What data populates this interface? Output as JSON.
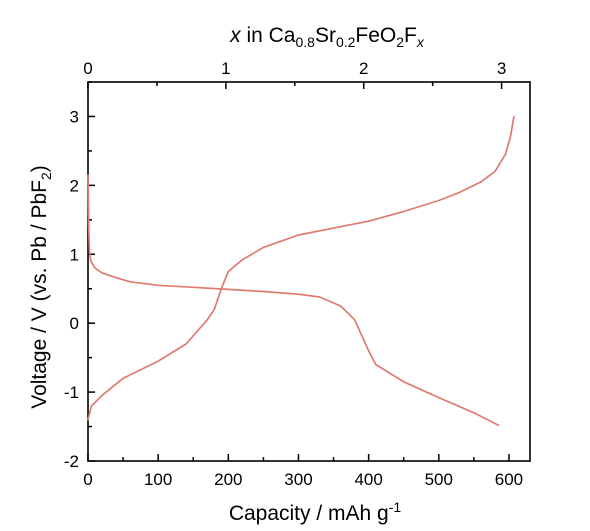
{
  "chart_data": {
    "type": "line",
    "xlabel": {
      "main": "Capacity / mAh g",
      "sup": "-1"
    },
    "ylabel": {
      "main": "Voltage / V (vs. Pb / PbF",
      "sub": "2",
      "tail": ")"
    },
    "top_xlabel": {
      "var": "x",
      "pre": " in Ca",
      "sub1": "0.8",
      "mid": "Sr",
      "sub2": "0.2",
      "post": "FeO",
      "sub3": "2",
      "f": "F",
      "sub4": "x"
    },
    "xlim": [
      0,
      630
    ],
    "ylim": [
      -2,
      3.5
    ],
    "x_ticks": [
      0,
      100,
      200,
      300,
      400,
      500,
      600
    ],
    "y_ticks": [
      -2,
      -1,
      0,
      1,
      2,
      3
    ],
    "top_x_ticks": [
      0,
      1,
      2,
      3
    ],
    "top_axis_scale_mAh_per_unit": 196.5,
    "grid": false,
    "line_color": "#e07a70",
    "series": [
      {
        "values": [
          [
            0,
            2.15
          ],
          [
            1,
            1.4
          ],
          [
            2,
            1.05
          ],
          [
            4,
            0.9
          ],
          [
            10,
            0.8
          ],
          [
            20,
            0.73
          ],
          [
            40,
            0.66
          ],
          [
            60,
            0.6
          ],
          [
            100,
            0.55
          ],
          [
            150,
            0.52
          ],
          [
            200,
            0.49
          ],
          [
            250,
            0.46
          ],
          [
            300,
            0.42
          ],
          [
            330,
            0.38
          ],
          [
            360,
            0.25
          ],
          [
            380,
            0.05
          ],
          [
            400,
            -0.4
          ],
          [
            410,
            -0.6
          ],
          [
            450,
            -0.85
          ],
          [
            500,
            -1.08
          ],
          [
            550,
            -1.3
          ],
          [
            585,
            -1.48
          ]
        ]
      },
      {
        "values": [
          [
            0,
            -1.4
          ],
          [
            5,
            -1.2
          ],
          [
            20,
            -1.05
          ],
          [
            50,
            -0.8
          ],
          [
            100,
            -0.55
          ],
          [
            140,
            -0.3
          ],
          [
            170,
            0.05
          ],
          [
            180,
            0.2
          ],
          [
            190,
            0.5
          ],
          [
            200,
            0.75
          ],
          [
            220,
            0.92
          ],
          [
            250,
            1.1
          ],
          [
            300,
            1.28
          ],
          [
            350,
            1.38
          ],
          [
            400,
            1.48
          ],
          [
            450,
            1.62
          ],
          [
            500,
            1.78
          ],
          [
            530,
            1.9
          ],
          [
            560,
            2.05
          ],
          [
            580,
            2.2
          ],
          [
            595,
            2.45
          ],
          [
            602,
            2.7
          ],
          [
            607,
            3.0
          ]
        ]
      }
    ]
  }
}
